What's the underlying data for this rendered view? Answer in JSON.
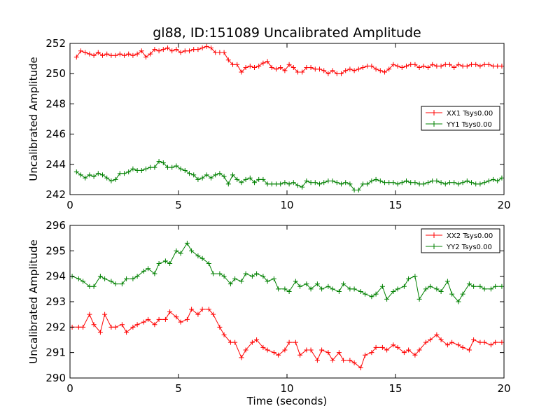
{
  "figure": {
    "title": "gl88, ID:151089 Uncalibrated Amplitude",
    "xlabel": "Time (seconds)"
  },
  "chart_data": [
    {
      "type": "line",
      "ylabel": "Uncalibrated Amplitude",
      "xlim": [
        0,
        20
      ],
      "ylim": [
        242,
        252
      ],
      "xticks": [
        0,
        5,
        10,
        15,
        20
      ],
      "yticks": [
        242,
        244,
        246,
        248,
        250,
        252
      ],
      "legend_position": "right",
      "series": [
        {
          "name": "XX1 Tsys0.00",
          "color": "#ff0000",
          "x": [
            0.3,
            0.5,
            0.7,
            0.9,
            1.1,
            1.3,
            1.5,
            1.7,
            1.9,
            2.1,
            2.3,
            2.5,
            2.7,
            2.9,
            3.1,
            3.3,
            3.5,
            3.7,
            3.9,
            4.1,
            4.3,
            4.5,
            4.7,
            4.9,
            5.1,
            5.3,
            5.5,
            5.7,
            5.9,
            6.1,
            6.3,
            6.5,
            6.7,
            6.9,
            7.1,
            7.3,
            7.5,
            7.7,
            7.9,
            8.1,
            8.3,
            8.5,
            8.7,
            8.9,
            9.1,
            9.3,
            9.5,
            9.7,
            9.9,
            10.1,
            10.3,
            10.5,
            10.7,
            10.9,
            11.1,
            11.3,
            11.5,
            11.7,
            11.9,
            12.1,
            12.3,
            12.5,
            12.7,
            12.9,
            13.1,
            13.3,
            13.5,
            13.7,
            13.9,
            14.1,
            14.3,
            14.5,
            14.7,
            14.9,
            15.1,
            15.3,
            15.5,
            15.7,
            15.9,
            16.1,
            16.3,
            16.5,
            16.7,
            16.9,
            17.1,
            17.3,
            17.5,
            17.7,
            17.9,
            18.1,
            18.3,
            18.5,
            18.7,
            18.9,
            19.1,
            19.3,
            19.5,
            19.7,
            19.9
          ],
          "values": [
            251.1,
            251.5,
            251.4,
            251.3,
            251.2,
            251.4,
            251.2,
            251.3,
            251.2,
            251.2,
            251.3,
            251.2,
            251.3,
            251.2,
            251.3,
            251.5,
            251.1,
            251.3,
            251.6,
            251.5,
            251.6,
            251.7,
            251.5,
            251.6,
            251.4,
            251.5,
            251.5,
            251.6,
            251.6,
            251.7,
            251.8,
            251.7,
            251.4,
            251.4,
            251.4,
            250.9,
            250.6,
            250.6,
            250.1,
            250.4,
            250.5,
            250.4,
            250.5,
            250.7,
            250.8,
            250.4,
            250.3,
            250.4,
            250.2,
            250.6,
            250.4,
            250.1,
            250.1,
            250.4,
            250.4,
            250.3,
            250.3,
            250.2,
            250.0,
            250.2,
            250.0,
            250.0,
            250.2,
            250.3,
            250.2,
            250.3,
            250.4,
            250.5,
            250.5,
            250.3,
            250.2,
            250.1,
            250.3,
            250.6,
            250.5,
            250.4,
            250.5,
            250.6,
            250.6,
            250.4,
            250.5,
            250.4,
            250.6,
            250.5,
            250.5,
            250.6,
            250.6,
            250.4,
            250.6,
            250.5,
            250.5,
            250.6,
            250.6,
            250.5,
            250.6,
            250.6,
            250.5,
            250.5,
            250.5
          ]
        },
        {
          "name": "YY1 Tsys0.00",
          "color": "#008000",
          "x": [
            0.3,
            0.5,
            0.7,
            0.9,
            1.1,
            1.3,
            1.5,
            1.7,
            1.9,
            2.1,
            2.3,
            2.5,
            2.7,
            2.9,
            3.1,
            3.3,
            3.5,
            3.7,
            3.9,
            4.1,
            4.3,
            4.5,
            4.7,
            4.9,
            5.1,
            5.3,
            5.5,
            5.7,
            5.9,
            6.1,
            6.3,
            6.5,
            6.7,
            6.9,
            7.1,
            7.3,
            7.5,
            7.7,
            7.9,
            8.1,
            8.3,
            8.5,
            8.7,
            8.9,
            9.1,
            9.3,
            9.5,
            9.7,
            9.9,
            10.1,
            10.3,
            10.5,
            10.7,
            10.9,
            11.1,
            11.3,
            11.5,
            11.7,
            11.9,
            12.1,
            12.3,
            12.5,
            12.7,
            12.9,
            13.1,
            13.3,
            13.5,
            13.7,
            13.9,
            14.1,
            14.3,
            14.5,
            14.7,
            14.9,
            15.1,
            15.3,
            15.5,
            15.7,
            15.9,
            16.1,
            16.3,
            16.5,
            16.7,
            16.9,
            17.1,
            17.3,
            17.5,
            17.7,
            17.9,
            18.1,
            18.3,
            18.5,
            18.7,
            18.9,
            19.1,
            19.3,
            19.5,
            19.7,
            19.9
          ],
          "values": [
            243.5,
            243.3,
            243.1,
            243.3,
            243.2,
            243.4,
            243.3,
            243.1,
            242.9,
            243.0,
            243.4,
            243.4,
            243.5,
            243.7,
            243.6,
            243.6,
            243.7,
            243.8,
            243.8,
            244.2,
            244.1,
            243.8,
            243.8,
            243.9,
            243.7,
            243.6,
            243.4,
            243.3,
            243.0,
            243.1,
            243.3,
            243.1,
            243.3,
            243.4,
            243.2,
            242.7,
            243.3,
            243.0,
            242.8,
            243.0,
            243.1,
            242.8,
            243.0,
            243.0,
            242.7,
            242.7,
            242.7,
            242.7,
            242.8,
            242.7,
            242.8,
            242.6,
            242.5,
            242.9,
            242.8,
            242.8,
            242.7,
            242.8,
            242.9,
            242.9,
            242.8,
            242.7,
            242.8,
            242.7,
            242.3,
            242.3,
            242.7,
            242.7,
            242.9,
            243.0,
            242.9,
            242.8,
            242.8,
            242.8,
            242.7,
            242.8,
            242.9,
            242.8,
            242.8,
            242.7,
            242.7,
            242.8,
            242.9,
            242.9,
            242.8,
            242.7,
            242.8,
            242.8,
            242.7,
            242.8,
            242.9,
            242.8,
            242.7,
            242.7,
            242.8,
            242.9,
            243.0,
            242.9,
            243.1
          ]
        }
      ]
    },
    {
      "type": "line",
      "ylabel": "Uncalibrated Amplitude",
      "xlim": [
        0,
        20
      ],
      "ylim": [
        290,
        296
      ],
      "xticks": [
        0,
        5,
        10,
        15,
        20
      ],
      "yticks": [
        290,
        291,
        292,
        293,
        294,
        295,
        296
      ],
      "legend_position": "top-right",
      "series": [
        {
          "name": "XX2 Tsys0.00",
          "color": "#ff0000",
          "x": [
            0.1,
            0.4,
            0.6,
            0.9,
            1.1,
            1.4,
            1.6,
            1.9,
            2.1,
            2.4,
            2.6,
            2.9,
            3.1,
            3.4,
            3.6,
            3.9,
            4.1,
            4.4,
            4.6,
            4.9,
            5.1,
            5.4,
            5.6,
            5.9,
            6.1,
            6.4,
            6.6,
            6.9,
            7.1,
            7.4,
            7.6,
            7.9,
            8.1,
            8.4,
            8.6,
            8.9,
            9.1,
            9.4,
            9.6,
            9.9,
            10.1,
            10.4,
            10.6,
            10.9,
            11.1,
            11.4,
            11.6,
            11.9,
            12.1,
            12.4,
            12.6,
            12.9,
            13.1,
            13.4,
            13.6,
            13.9,
            14.1,
            14.4,
            14.6,
            14.9,
            15.1,
            15.4,
            15.6,
            15.9,
            16.1,
            16.4,
            16.6,
            16.9,
            17.1,
            17.4,
            17.6,
            17.9,
            18.1,
            18.4,
            18.6,
            18.9,
            19.1,
            19.4,
            19.6,
            19.9
          ],
          "values": [
            292.0,
            292.0,
            292.0,
            292.5,
            292.1,
            291.8,
            292.5,
            292.0,
            292.0,
            292.1,
            291.8,
            292.0,
            292.1,
            292.2,
            292.3,
            292.1,
            292.3,
            292.3,
            292.6,
            292.4,
            292.2,
            292.3,
            292.7,
            292.5,
            292.7,
            292.7,
            292.5,
            292.0,
            291.7,
            291.4,
            291.4,
            290.8,
            291.1,
            291.4,
            291.5,
            291.2,
            291.1,
            291.0,
            290.9,
            291.1,
            291.4,
            291.4,
            290.9,
            291.1,
            291.1,
            290.7,
            291.1,
            291.0,
            290.7,
            291.0,
            290.7,
            290.7,
            290.6,
            290.4,
            290.9,
            291.0,
            291.2,
            291.2,
            291.1,
            291.3,
            291.2,
            291.0,
            291.1,
            290.9,
            291.1,
            291.4,
            291.5,
            291.7,
            291.5,
            291.3,
            291.4,
            291.3,
            291.2,
            291.1,
            291.5,
            291.4,
            291.4,
            291.3,
            291.4,
            291.4
          ]
        },
        {
          "name": "YY2 Tsys0.00",
          "color": "#008000",
          "x": [
            0.1,
            0.4,
            0.6,
            0.9,
            1.1,
            1.4,
            1.6,
            1.9,
            2.1,
            2.4,
            2.6,
            2.9,
            3.1,
            3.4,
            3.6,
            3.9,
            4.1,
            4.4,
            4.6,
            4.9,
            5.1,
            5.4,
            5.6,
            5.9,
            6.1,
            6.4,
            6.6,
            6.9,
            7.1,
            7.4,
            7.6,
            7.9,
            8.1,
            8.4,
            8.6,
            8.9,
            9.1,
            9.4,
            9.6,
            9.9,
            10.1,
            10.4,
            10.6,
            10.9,
            11.1,
            11.4,
            11.6,
            11.9,
            12.1,
            12.4,
            12.6,
            12.9,
            13.1,
            13.4,
            13.6,
            13.9,
            14.1,
            14.4,
            14.6,
            14.9,
            15.1,
            15.4,
            15.6,
            15.9,
            16.1,
            16.4,
            16.6,
            16.9,
            17.1,
            17.4,
            17.6,
            17.9,
            18.1,
            18.4,
            18.6,
            18.9,
            19.1,
            19.4,
            19.6,
            19.9
          ],
          "values": [
            294.0,
            293.9,
            293.8,
            293.6,
            293.6,
            294.0,
            293.9,
            293.8,
            293.7,
            293.7,
            293.9,
            293.9,
            294.0,
            294.2,
            294.3,
            294.1,
            294.5,
            294.6,
            294.5,
            295.0,
            294.9,
            295.3,
            295.0,
            294.8,
            294.7,
            294.5,
            294.1,
            294.1,
            294.0,
            293.7,
            293.9,
            293.8,
            294.1,
            294.0,
            294.1,
            294.0,
            293.8,
            293.9,
            293.5,
            293.5,
            293.4,
            293.8,
            293.6,
            293.7,
            293.5,
            293.7,
            293.5,
            293.6,
            293.5,
            293.4,
            293.7,
            293.5,
            293.5,
            293.4,
            293.3,
            293.2,
            293.3,
            293.6,
            293.1,
            293.4,
            293.5,
            293.6,
            293.9,
            294.0,
            293.1,
            293.5,
            293.6,
            293.5,
            293.4,
            293.8,
            293.3,
            293.0,
            293.3,
            293.7,
            293.6,
            293.6,
            293.5,
            293.5,
            293.6,
            293.6
          ]
        }
      ]
    }
  ]
}
